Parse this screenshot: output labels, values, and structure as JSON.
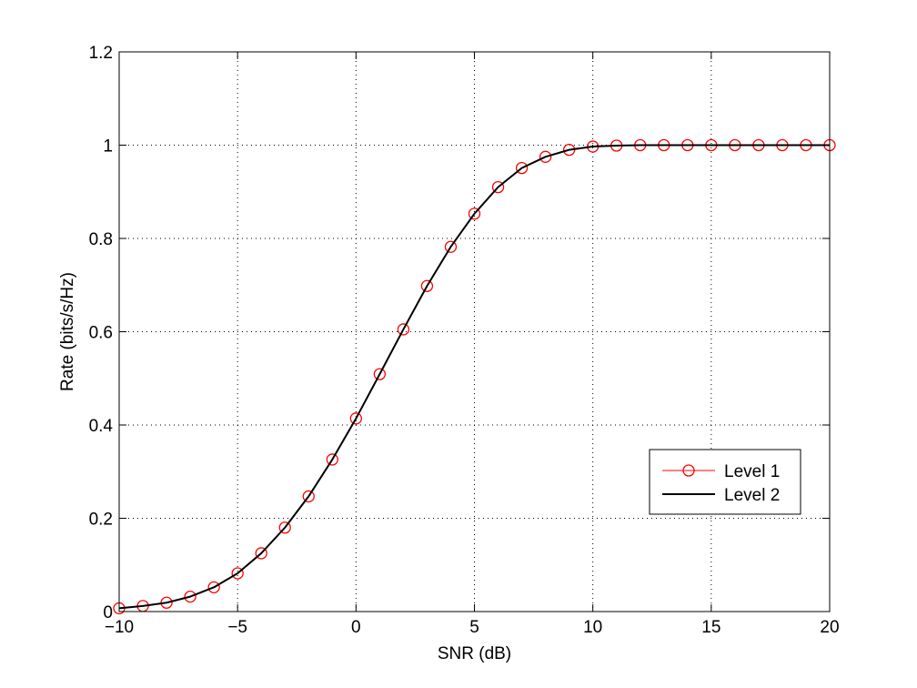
{
  "chart_data": {
    "type": "line",
    "title": "",
    "xlabel": "SNR (dB)",
    "ylabel": "Rate (bits/s/Hz)",
    "xlim": [
      -10,
      20
    ],
    "ylim": [
      0,
      1.2
    ],
    "xticks": [
      -10,
      -5,
      0,
      5,
      10,
      15,
      20
    ],
    "xtick_labels": [
      "−10",
      "−5",
      "0",
      "5",
      "10",
      "15",
      "20"
    ],
    "yticks": [
      0,
      0.2,
      0.4,
      0.6,
      0.8,
      1,
      1.2
    ],
    "ytick_labels": [
      "0",
      "0.2",
      "0.4",
      "0.6",
      "0.8",
      "1",
      "1.2"
    ],
    "grid": true,
    "legend_position": "lower-right",
    "series": [
      {
        "name": "Level 1",
        "color": "#ff0000",
        "marker": "circle",
        "line": "solid",
        "x": [
          -10,
          -9,
          -8,
          -7,
          -6,
          -5,
          -4,
          -3,
          -2,
          -1,
          0,
          1,
          2,
          3,
          4,
          5,
          6,
          7,
          8,
          9,
          10,
          11,
          12,
          13,
          14,
          15,
          16,
          17,
          18,
          19,
          20
        ],
        "y": [
          0.007,
          0.012,
          0.019,
          0.032,
          0.052,
          0.082,
          0.125,
          0.18,
          0.247,
          0.326,
          0.414,
          0.509,
          0.605,
          0.698,
          0.782,
          0.853,
          0.91,
          0.951,
          0.975,
          0.99,
          0.997,
          0.999,
          1.0,
          1.0,
          1.0,
          1.0,
          1.0,
          1.0,
          1.0,
          1.0,
          1.0
        ]
      },
      {
        "name": "Level 2",
        "color": "#000000",
        "marker": "none",
        "line": "solid",
        "x": [
          -10,
          -9,
          -8,
          -7,
          -6,
          -5,
          -4,
          -3,
          -2,
          -1,
          0,
          1,
          2,
          3,
          4,
          5,
          6,
          7,
          8,
          9,
          10,
          11,
          12,
          13,
          14,
          15,
          16,
          17,
          18,
          19,
          20
        ],
        "y": [
          0.007,
          0.012,
          0.019,
          0.032,
          0.052,
          0.082,
          0.125,
          0.18,
          0.247,
          0.326,
          0.414,
          0.509,
          0.605,
          0.698,
          0.782,
          0.853,
          0.91,
          0.951,
          0.975,
          0.99,
          0.997,
          0.999,
          1.0,
          1.0,
          1.0,
          1.0,
          1.0,
          1.0,
          1.0,
          1.0,
          1.0
        ]
      }
    ]
  }
}
